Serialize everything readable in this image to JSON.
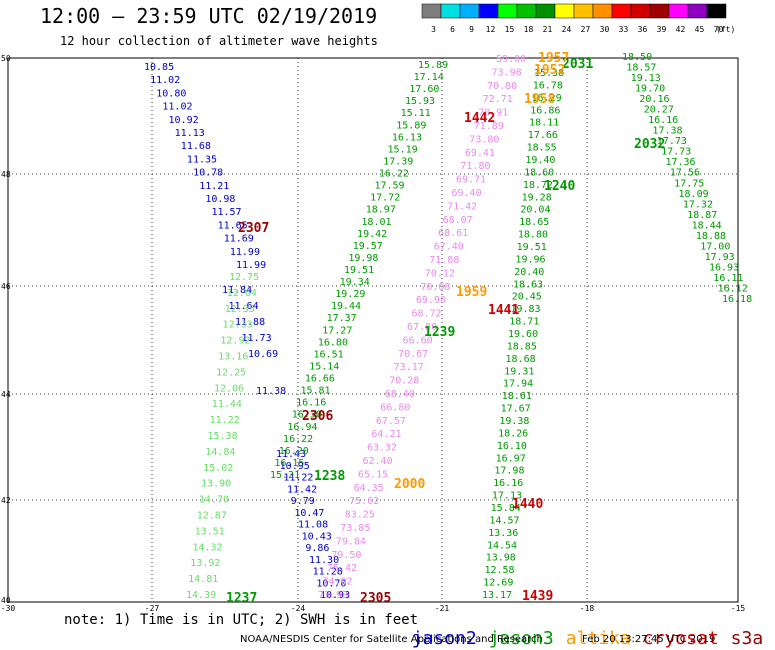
{
  "title": "12:00 – 23:59 UTC 02/19/2019",
  "subtitle": "12 hour collection of altimeter wave heights",
  "colorbar": {
    "ticks": [
      "3",
      "6",
      "9",
      "12",
      "15",
      "18",
      "21",
      "24",
      "27",
      "30",
      "33",
      "36",
      "39",
      "42",
      "45",
      "70"
    ],
    "unit": "(ft)",
    "colors": [
      "#7f7f7f",
      "#00e0e0",
      "#00b0ff",
      "#0000ff",
      "#00ff00",
      "#00c000",
      "#009000",
      "#ffff00",
      "#ffc000",
      "#ff9000",
      "#ff0000",
      "#d00000",
      "#a00000",
      "#ff00ff",
      "#9000c0",
      "#000000"
    ]
  },
  "map": {
    "lat_labels": [
      "50",
      "48",
      "46",
      "44",
      "42",
      "40"
    ],
    "lon_labels": [
      "-30",
      "-27",
      "-24",
      "-21",
      "-18",
      "-15"
    ]
  },
  "series_colors": {
    "jason2": "#0000cc",
    "jason3": "#009900",
    "altika": "#ff9900",
    "cryosat": "#cc0000",
    "s3a": "#990000",
    "pass_light_green": "#66dd66",
    "pass_pink": "#ee88ee"
  },
  "passes": {
    "jason2_a": [
      "10.85",
      "11.02",
      "10.80",
      "11.02",
      "10.92",
      "11.13",
      "11.68",
      "11.35",
      "10.78",
      "11.21",
      "10.98",
      "11.57",
      "11.65",
      "11.69",
      "11.99",
      "11.99"
    ],
    "jason2_b": [
      "11.84",
      "11.64",
      "11.88",
      "11.73",
      "10.69"
    ],
    "jason2_c": [
      "11.38"
    ],
    "jason2_d": [
      "11.43",
      "10.95",
      "11.22",
      "11.42",
      "9.79",
      "10.47",
      "11.08",
      "10.43",
      "9.86",
      "11.30",
      "11.28",
      "10.70",
      "10.93"
    ],
    "lightgreen_a": [
      "12.75",
      "12.64",
      "12.35",
      "12.33",
      "12.92",
      "13.16",
      "12.25",
      "12.06",
      "11.44",
      "11.22",
      "15.38",
      "14.84",
      "15.02",
      "13.90",
      "14.70",
      "12.87",
      "13.51",
      "14.32",
      "13.92",
      "14.81",
      "14.39"
    ],
    "jason3_a": [
      "15.89",
      "17.14",
      "17.60",
      "15.93",
      "15.11",
      "15.89",
      "16.13",
      "15.19",
      "17.39",
      "16.22",
      "17.59",
      "17.72",
      "18.97",
      "18.01",
      "19.42",
      "19.57",
      "19.98",
      "19.51",
      "19.34",
      "19.29",
      "19.44",
      "17.37",
      "17.27",
      "16.80",
      "16.51",
      "15.14",
      "16.66",
      "15.81",
      "16.16",
      "16.30",
      "16.94",
      "16.22",
      "16.20",
      "16.15",
      "15.21"
    ],
    "jason3_b": [
      "18.50",
      "18.57",
      "19.13",
      "19.70",
      "20.16",
      "20.27",
      "16.16",
      "17.38",
      "17.73",
      "17.73",
      "17.36",
      "17.56",
      "17.75",
      "18.09",
      "17.32",
      "18.87",
      "18.44",
      "18.88",
      "17.00",
      "17.93",
      "16.93",
      "16.11",
      "16.12",
      "16.18"
    ],
    "jason3_c": [
      "15.38",
      "16.78",
      "16.29",
      "16.86",
      "18.11",
      "17.66",
      "18.55",
      "19.40",
      "18.60",
      "18.72",
      "19.28",
      "20.04",
      "18.65",
      "18.80",
      "19.51",
      "19.96",
      "20.40",
      "18.63",
      "20.45",
      "19.83",
      "18.71",
      "19.60",
      "18.85",
      "18.68",
      "19.31",
      "17.94",
      "18.61",
      "17.67",
      "19.38",
      "18.26",
      "16.10",
      "16.97",
      "17.98",
      "16.16",
      "17.13",
      "15.84",
      "14.57",
      "13.36",
      "14.54",
      "13.98",
      "12.58",
      "12.69",
      "13.17"
    ],
    "pink_a": [
      "59.00",
      "73.98",
      "70.80",
      "72.71",
      "70.91",
      "71.89",
      "73.80",
      "69.41",
      "71.80",
      "69.71",
      "69.40",
      "71.42",
      "68.07",
      "68.61",
      "67.40",
      "71.88",
      "70.12",
      "70.08",
      "69.90",
      "68.72",
      "67.80",
      "66.60",
      "70.67",
      "73.17",
      "70.28",
      "68.40",
      "66.80",
      "67.57",
      "64.21",
      "63.32",
      "62.40",
      "65.15",
      "64.35",
      "75.62",
      "83.25",
      "73.85",
      "79.84",
      "79.50",
      "75.42",
      "74.02",
      "73.93"
    ],
    "labels": {
      "j2_2307": "2307",
      "s3a_2306": "2306",
      "s3a_2305": "2305",
      "j3_1238": "1238",
      "j3_1237": "1237",
      "j3_1239": "1239",
      "j3_1240": "1240",
      "j3_2031": "2031",
      "j3_2032": "2032",
      "al_1957": "1957",
      "al_1952": "1952",
      "al_1958": "1958",
      "al_1959": "1959",
      "al_2000": "2000",
      "cs_1442": "1442",
      "cs_1441": "1441",
      "cs_1440": "1440",
      "cs_1439": "1439"
    }
  },
  "note": "note: 1) Time is in UTC; 2) SWH is in feet",
  "legend": {
    "jason2": "jason2",
    "jason3": "jason3",
    "altika": "altika",
    "cryosat": "cryosat",
    "s3a": "s3a"
  },
  "credit": "NOAA/NESDIS Center for Satellite Applications and Research",
  "timestamp": "Feb 20 13:27:45 UTC 2019"
}
